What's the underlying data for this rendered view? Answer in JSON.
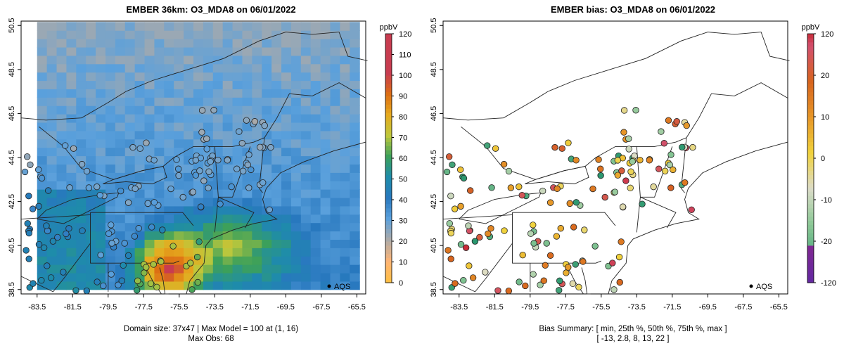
{
  "left_panel": {
    "title": "EMBER 36km: O3_MDA8 on 06/01/2022",
    "caption_line1": "Domain size: 37x47 | Max Model = 100 at (1, 16)",
    "caption_line2": "Max Obs: 68",
    "colorbar_unit": "ppbV",
    "colorbar_ticks": [
      "0",
      "10",
      "20",
      "30",
      "40",
      "50",
      "60",
      "70",
      "80",
      "90",
      "100",
      "110",
      "120"
    ],
    "legend_label": "AQS"
  },
  "right_panel": {
    "title": "EMBER bias: O3_MDA8 on 06/01/2022",
    "caption_line1": "Bias Summary: [ min, 25th %, 50th %, 75th %, max ]",
    "caption_line2": "[ -13,   2.8,   8,   13,   22 ]",
    "colorbar_unit": "ppbV",
    "colorbar_ticks": [
      "-120",
      "-20",
      "-10",
      "0",
      "10",
      "20",
      "120"
    ],
    "legend_label": "AQS"
  },
  "x_axis_ticks": [
    "-83.5",
    "-81.5",
    "-79.5",
    "-77.5",
    "-75.5",
    "-73.5",
    "-71.5",
    "-69.5",
    "-67.5",
    "-65.5"
  ],
  "y_axis_ticks": [
    "38.5",
    "40.5",
    "42.5",
    "44.5",
    "46.5",
    "48.5",
    "50.5"
  ],
  "colors": {
    "model_background": "#2e7fc0",
    "coast_line": "#222222",
    "bias_high": "#c1272d",
    "bias_mid": "#e38b1e",
    "bias_low": "#2aa36b"
  }
}
